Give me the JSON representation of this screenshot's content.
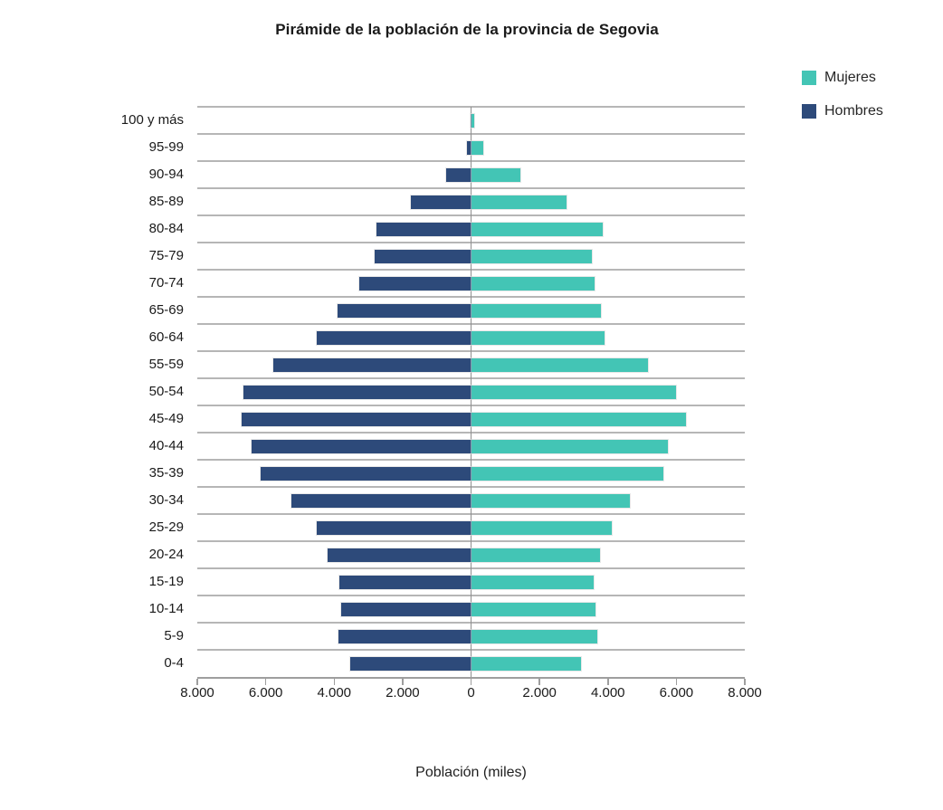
{
  "title": "Pirámide de la población de la provincia de Segovia",
  "x_axis_title": "Población (miles)",
  "legend": {
    "mujeres_label": "Mujeres",
    "hombres_label": "Hombres"
  },
  "colors": {
    "mujeres": "#43C5B5",
    "hombres": "#2D4A7A",
    "gridline": "#b6b6b6",
    "center_line": "#8f8f8f",
    "axis": "#9e9e9e",
    "text": "#1a1a1a"
  },
  "chart_data": {
    "type": "bar",
    "subtype": "population-pyramid",
    "orientation": "horizontal",
    "title": "Pirámide de la población de la provincia de Segovia",
    "xlabel": "Población (miles)",
    "ylabel": "",
    "grid": true,
    "legend_position": "top-right",
    "xlim_each_side": [
      0,
      8000
    ],
    "x_ticks": [
      "8.000",
      "6.000",
      "4.000",
      "2.000",
      "0",
      "2.000",
      "4.000",
      "6.000",
      "8.000"
    ],
    "x_tick_values": [
      -8000,
      -6000,
      -4000,
      -2000,
      0,
      2000,
      4000,
      6000,
      8000
    ],
    "categories": [
      "100 y más",
      "95-99",
      "90-94",
      "85-89",
      "80-84",
      "75-79",
      "70-74",
      "65-69",
      "60-64",
      "55-59",
      "50-54",
      "45-49",
      "40-44",
      "35-39",
      "30-34",
      "25-29",
      "20-24",
      "15-19",
      "10-14",
      "5-9",
      "0-4"
    ],
    "series": [
      {
        "name": "Hombres",
        "side": "left",
        "color": "#2D4A7A",
        "values": [
          20,
          110,
          725,
          1750,
          2760,
          2810,
          3270,
          3900,
          4510,
          5780,
          6650,
          6700,
          6420,
          6140,
          5240,
          4520,
          4180,
          3850,
          3790,
          3880,
          3530
        ]
      },
      {
        "name": "Mujeres",
        "side": "right",
        "color": "#43C5B5",
        "values": [
          90,
          350,
          1430,
          2790,
          3860,
          3540,
          3610,
          3800,
          3890,
          5160,
          5990,
          6280,
          5750,
          5620,
          4640,
          4110,
          3760,
          3590,
          3640,
          3690,
          3200
        ]
      }
    ]
  }
}
